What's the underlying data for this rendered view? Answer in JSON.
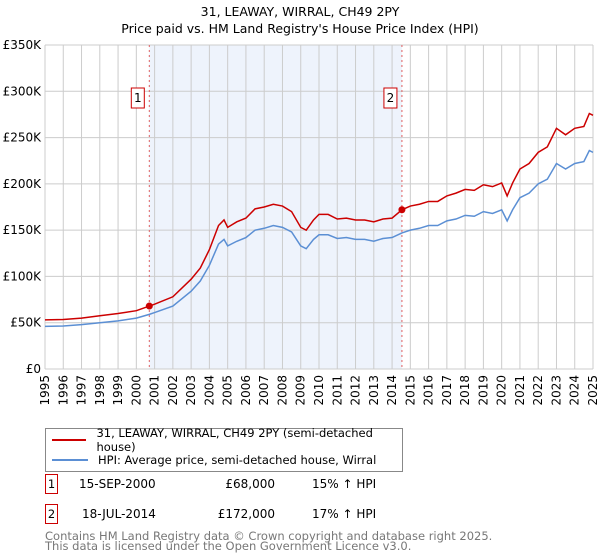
{
  "chart_data": {
    "type": "line",
    "title": "31, LEAWAY, WIRRAL, CH49 2PY",
    "subtitle": "Price paid vs. HM Land Registry's House Price Index (HPI)",
    "xlim": [
      1995,
      2025
    ],
    "ylim": [
      0,
      350000
    ],
    "y_ticks": [
      {
        "v": 0,
        "label": "£0"
      },
      {
        "v": 50000,
        "label": "£50K"
      },
      {
        "v": 100000,
        "label": "£100K"
      },
      {
        "v": 150000,
        "label": "£150K"
      },
      {
        "v": 200000,
        "label": "£200K"
      },
      {
        "v": 250000,
        "label": "£250K"
      },
      {
        "v": 300000,
        "label": "£300K"
      },
      {
        "v": 350000,
        "label": "£350K"
      }
    ],
    "x_ticks": [
      "1995",
      "1996",
      "1997",
      "1998",
      "1999",
      "2000",
      "2001",
      "2002",
      "2003",
      "2004",
      "2005",
      "2006",
      "2007",
      "2008",
      "2009",
      "2010",
      "2011",
      "2012",
      "2013",
      "2014",
      "2015",
      "2016",
      "2017",
      "2018",
      "2019",
      "2020",
      "2021",
      "2022",
      "2023",
      "2024",
      "2025"
    ],
    "grid": true,
    "shaded_range": [
      2000.71,
      2014.54
    ],
    "x": [
      1995,
      1996,
      1997,
      1998,
      1999,
      2000,
      2000.71,
      2001,
      2002,
      2003,
      2003.5,
      2004,
      2004.5,
      2004.8,
      2005,
      2005.5,
      2006,
      2006.5,
      2007,
      2007.5,
      2008,
      2008.5,
      2009,
      2009.3,
      2009.7,
      2010,
      2010.5,
      2011,
      2011.5,
      2012,
      2012.5,
      2013,
      2013.5,
      2014,
      2014.54,
      2015,
      2015.5,
      2016,
      2016.5,
      2017,
      2017.5,
      2018,
      2018.5,
      2019,
      2019.5,
      2020,
      2020.3,
      2020.6,
      2021,
      2021.5,
      2022,
      2022.5,
      2023,
      2023.5,
      2024,
      2024.5,
      2024.8,
      2025
    ],
    "series": [
      {
        "name": "31, LEAWAY, WIRRAL, CH49 2PY (semi-detached house)",
        "color": "#cc0000",
        "values": [
          53000,
          53500,
          55000,
          57500,
          60000,
          63000,
          68000,
          70000,
          78000,
          97000,
          109000,
          129000,
          155000,
          161000,
          153000,
          159000,
          163000,
          173000,
          175000,
          178000,
          176000,
          170000,
          153000,
          150000,
          161000,
          167000,
          167000,
          162000,
          163000,
          161000,
          161000,
          159000,
          162000,
          163000,
          172000,
          176000,
          178000,
          181000,
          181000,
          187000,
          190000,
          194000,
          193000,
          199000,
          197000,
          201000,
          187000,
          201000,
          216000,
          222000,
          234000,
          240000,
          260000,
          253000,
          260000,
          262000,
          276000,
          274000
        ]
      },
      {
        "name": "HPI: Average price, semi-detached house, Wirral",
        "color": "#5b8fd4",
        "values": [
          46000,
          46500,
          48000,
          50000,
          52000,
          55000,
          59000,
          61000,
          68000,
          84000,
          95000,
          112000,
          135000,
          140000,
          133000,
          138000,
          142000,
          150000,
          152000,
          155000,
          153000,
          148000,
          133000,
          130000,
          140000,
          145000,
          145000,
          141000,
          142000,
          140000,
          140000,
          138000,
          141000,
          142000,
          147000,
          150000,
          152000,
          155000,
          155000,
          160000,
          162000,
          166000,
          165000,
          170000,
          168000,
          172000,
          160000,
          172000,
          185000,
          190000,
          200000,
          205000,
          222000,
          216000,
          222000,
          224000,
          236000,
          234000
        ]
      }
    ],
    "sales": [
      {
        "id": "1",
        "x": 2000.71,
        "price": 68000,
        "date": "15-SEP-2000",
        "price_label": "£68,000",
        "delta": "15% ↑ HPI"
      },
      {
        "id": "2",
        "x": 2014.54,
        "price": 172000,
        "date": "18-JUL-2014",
        "price_label": "£172,000",
        "delta": "17% ↑ HPI"
      }
    ]
  },
  "footer": {
    "line1": "Contains HM Land Registry data © Crown copyright and database right 2025.",
    "line2": "This data is licensed under the Open Government Licence v3.0."
  }
}
